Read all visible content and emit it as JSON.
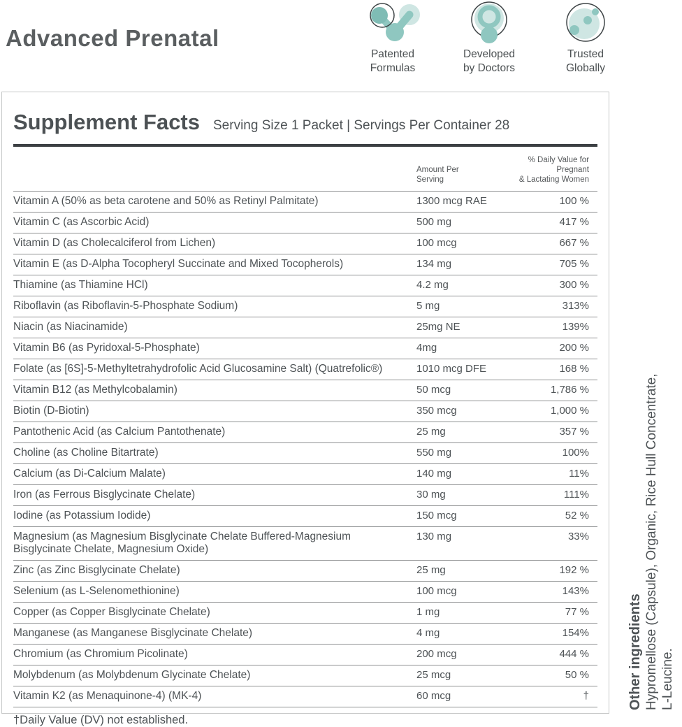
{
  "header": {
    "title": "Advanced Prenatal",
    "badges": [
      {
        "icon": "patented-formulas-icon",
        "label_line1": "Patented",
        "label_line2": "Formulas"
      },
      {
        "icon": "developed-by-doctors-icon",
        "label_line1": "Developed",
        "label_line2": "by Doctors"
      },
      {
        "icon": "trusted-globally-icon",
        "label_line1": "Trusted",
        "label_line2": "Globally"
      }
    ]
  },
  "panel": {
    "title": "Supplement Facts",
    "serving_info": "Serving Size 1 Packet | Servings Per Container 28",
    "columns": {
      "amount_line1": "Amount Per",
      "amount_line2": "Serving",
      "dv_line1": "% Daily Value for Pregnant",
      "dv_line2": "& Lactating Women"
    },
    "rows": [
      {
        "name": "Vitamin A (50% as beta carotene and 50% as Retinyl Palmitate)",
        "amount": "1300 mcg RAE",
        "dv": "100 %"
      },
      {
        "name": "Vitamin C (as Ascorbic Acid)",
        "amount": "500 mg",
        "dv": "417 %"
      },
      {
        "name": "Vitamin D (as Cholecalciferol from Lichen)",
        "amount": "100 mcg",
        "dv": "667 %"
      },
      {
        "name": "Vitamin E (as D-Alpha Tocopheryl Succinate and Mixed Tocopherols)",
        "amount": "134 mg",
        "dv": "705 %"
      },
      {
        "name": "Thiamine (as Thiamine HCl)",
        "amount": "4.2 mg",
        "dv": "300 %"
      },
      {
        "name": "Riboflavin (as Riboflavin-5-Phosphate Sodium)",
        "amount": "5 mg",
        "dv": "313%"
      },
      {
        "name": "Niacin (as Niacinamide)",
        "amount": "25mg NE",
        "dv": "139%"
      },
      {
        "name": "Vitamin B6 (as Pyridoxal-5-Phosphate)",
        "amount": "4mg",
        "dv": "200 %"
      },
      {
        "name": "Folate (as [6S]-5-Methyltetrahydrofolic Acid Glucosamine Salt) (Quatrefolic®)",
        "amount": "1010 mcg DFE",
        "dv": "168 %"
      },
      {
        "name": "Vitamin B12 (as Methylcobalamin)",
        "amount": "50 mcg",
        "dv": "1,786 %"
      },
      {
        "name": "Biotin (D-Biotin)",
        "amount": "350 mcg",
        "dv": "1,000 %"
      },
      {
        "name": "Pantothenic Acid (as Calcium Pantothenate)",
        "amount": "25 mg",
        "dv": "357 %"
      },
      {
        "name": "Choline (as Choline Bitartrate)",
        "amount": "550 mg",
        "dv": "100%"
      },
      {
        "name": "Calcium (as Di-Calcium Malate)",
        "amount": "140 mg",
        "dv": "11%"
      },
      {
        "name": "Iron (as Ferrous Bisglycinate Chelate)",
        "amount": "30 mg",
        "dv": "111%"
      },
      {
        "name": "Iodine (as Potassium Iodide)",
        "amount": "150 mcg",
        "dv": "52 %"
      },
      {
        "name": "Magnesium (as Magnesium Bisglycinate Chelate Buffered-Magnesium Bisglycinate Chelate, Magnesium Oxide)",
        "amount": "130 mg",
        "dv": "33%"
      },
      {
        "name": "Zinc (as Zinc Bisglycinate Chelate)",
        "amount": "25 mg",
        "dv": "192 %"
      },
      {
        "name": "Selenium (as L-Selenomethionine)",
        "amount": "100 mcg",
        "dv": "143%"
      },
      {
        "name": "Copper (as Copper Bisglycinate Chelate)",
        "amount": "1 mg",
        "dv": "77 %"
      },
      {
        "name": "Manganese (as Manganese Bisglycinate Chelate)",
        "amount": "4 mg",
        "dv": "154%"
      },
      {
        "name": "Chromium (as Chromium Picolinate)",
        "amount": "200 mcg",
        "dv": "444 %"
      },
      {
        "name": "Molybdenum (as Molybdenum Glycinate Chelate)",
        "amount": "25 mcg",
        "dv": "50 %"
      },
      {
        "name": "Vitamin K2 (as Menaquinone-4) (MK-4)",
        "amount": "60 mcg",
        "dv": "†"
      }
    ],
    "footnote": "†Daily Value (DV) not established."
  },
  "side_note": {
    "heading": "Other ingredients",
    "line1": "Hypromellose (Capsule), Organic, Rice Hull Concentrate,",
    "line2": "L-Leucine."
  },
  "colors": {
    "teal_dark": "#7fbcb5",
    "teal_mid": "#8fc7c0",
    "teal_light": "#cfe6e3",
    "outline_gray": "#3f4547",
    "text_gray": "#4e5356",
    "rule_thick": "#3c4043",
    "rule_thin": "#8f9192",
    "panel_border": "#c5c7c7"
  }
}
